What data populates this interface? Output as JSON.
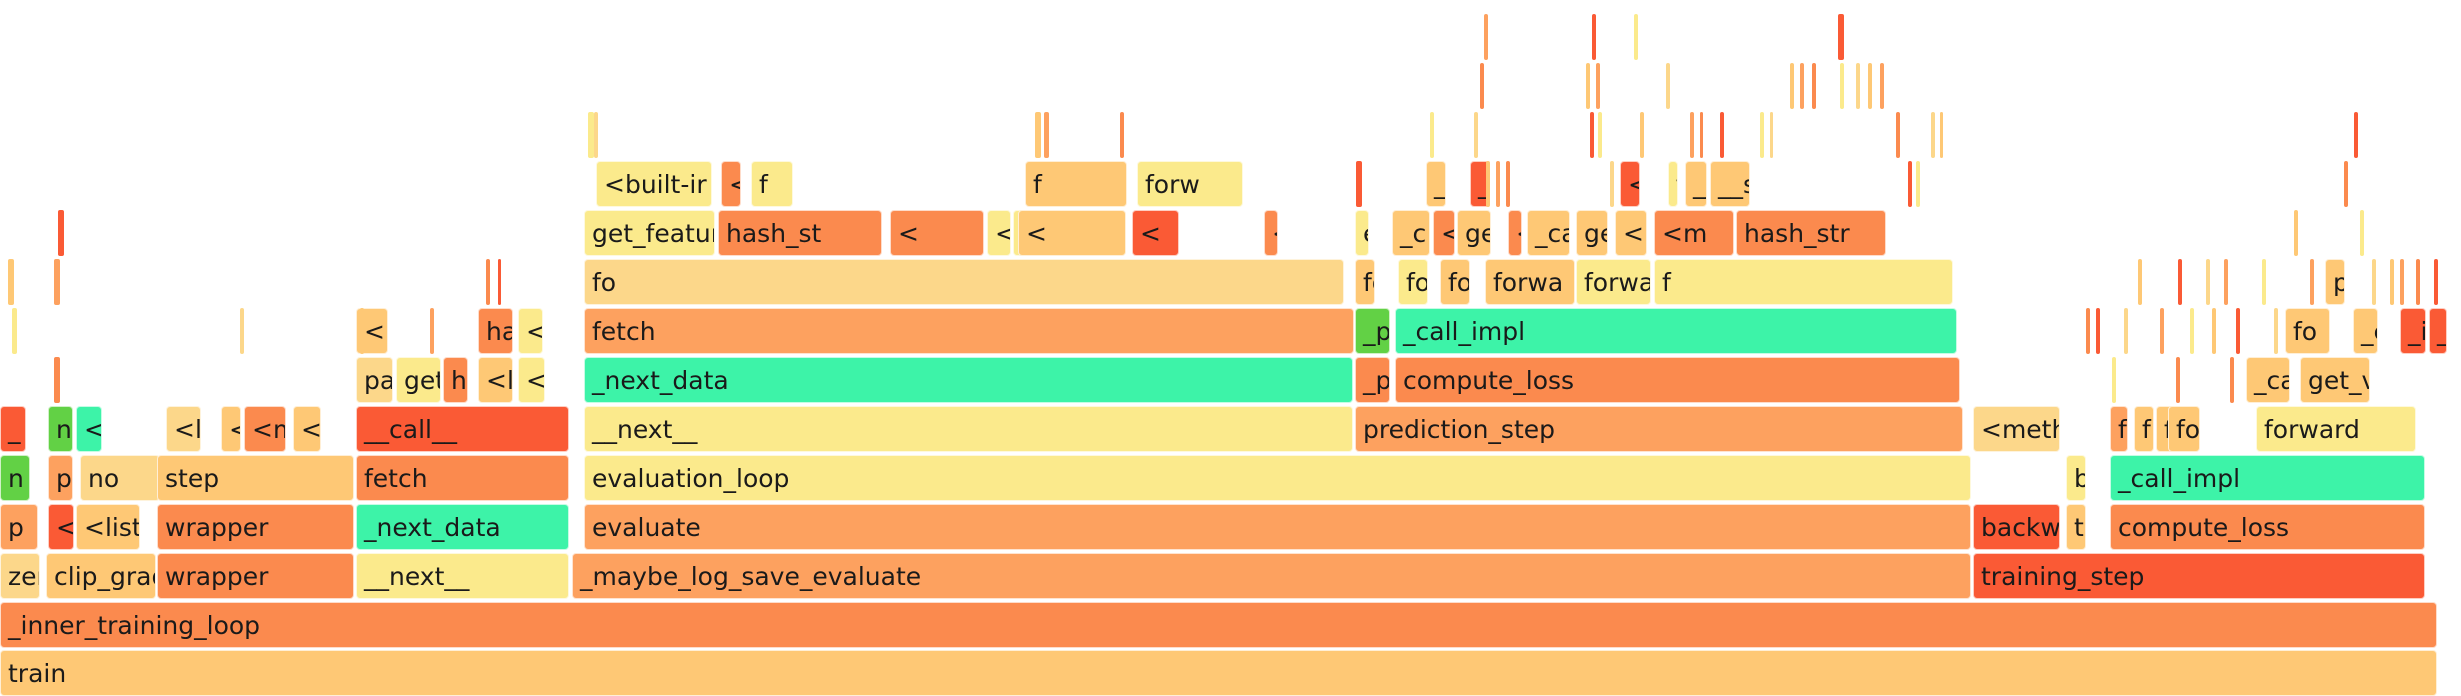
{
  "colors": {
    "c0": "#fec875",
    "c1": "#fda15f",
    "c2": "#fb8a4e",
    "c3": "#fa5a35",
    "c4": "#fbea8c",
    "c5": "#3df3a8",
    "c6": "#62d145",
    "c7": "#fcd78a"
  },
  "frames": [
    {
      "label": "train",
      "c": "c0"
    },
    {
      "label": "_inner_training_loop",
      "c": "c2"
    },
    {
      "label": "zer",
      "c": "c7"
    },
    {
      "label": "clip_grad",
      "c": "c0"
    },
    {
      "label": "wrapper",
      "c": "c2"
    },
    {
      "label": "__next__",
      "c": "c4"
    },
    {
      "label": "_maybe_log_save_evaluate",
      "c": "c1"
    },
    {
      "label": "training_step",
      "c": "c3"
    },
    {
      "label": "p",
      "c": "c1"
    },
    {
      "label": "<",
      "c": "c3"
    },
    {
      "label": "<list",
      "c": "c0"
    },
    {
      "label": "wrapper",
      "c": "c2"
    },
    {
      "label": "_next_data",
      "c": "c5"
    },
    {
      "label": "evaluate",
      "c": "c1"
    },
    {
      "label": "backwa",
      "c": "c3"
    },
    {
      "label": "tr",
      "c": "c0"
    },
    {
      "label": "compute_loss",
      "c": "c2"
    },
    {
      "label": "n",
      "c": "c6"
    },
    {
      "label": "p",
      "c": "c1"
    },
    {
      "label": "no",
      "c": "c7"
    },
    {
      "label": "step",
      "c": "c0"
    },
    {
      "label": "fetch",
      "c": "c2"
    },
    {
      "label": "evaluation_loop",
      "c": "c4"
    },
    {
      "label": "backwa",
      "c": "c4"
    },
    {
      "label": "_call_impl",
      "c": "c5"
    },
    {
      "label": "_",
      "c": "c3"
    },
    {
      "label": "n",
      "c": "c6"
    },
    {
      "label": "<",
      "c": "c5"
    },
    {
      "label": "<l",
      "c": "c7"
    },
    {
      "label": "<",
      "c": "c0"
    },
    {
      "label": "<m",
      "c": "c2"
    },
    {
      "label": "<r",
      "c": "c0"
    },
    {
      "label": "__call__",
      "c": "c3"
    },
    {
      "label": "__next__",
      "c": "c4"
    },
    {
      "label": "prediction_step",
      "c": "c1"
    },
    {
      "label": "<metho",
      "c": "c7"
    },
    {
      "label": "f",
      "c": "c1"
    },
    {
      "label": "f",
      "c": "c0"
    },
    {
      "label": "fo",
      "c": "c0"
    },
    {
      "label": "for",
      "c": "c0"
    },
    {
      "label": "forward",
      "c": "c4"
    },
    {
      "label": "pa",
      "c": "c7"
    },
    {
      "label": "get",
      "c": "c4"
    },
    {
      "label": "h",
      "c": "c2"
    },
    {
      "label": "<l",
      "c": "c0"
    },
    {
      "label": "<l",
      "c": "c4"
    },
    {
      "label": "_next_data",
      "c": "c5"
    },
    {
      "label": "_p",
      "c": "c2"
    },
    {
      "label": "compute_loss",
      "c": "c2"
    },
    {
      "label": "_call",
      "c": "c0"
    },
    {
      "label": "get_var",
      "c": "c0"
    },
    {
      "label": "<",
      "c": "c0"
    },
    {
      "label": "ha",
      "c": "c2"
    },
    {
      "label": "<",
      "c": "c4"
    },
    {
      "label": "fetch",
      "c": "c1"
    },
    {
      "label": "_p",
      "c": "c6"
    },
    {
      "label": "_call_impl",
      "c": "c5"
    },
    {
      "label": "fo",
      "c": "c0"
    },
    {
      "label": "_ca",
      "c": "c0"
    },
    {
      "label": "_ir",
      "c": "c3"
    },
    {
      "label": "__call__",
      "c": "c3"
    },
    {
      "label": "fo",
      "c": "c7"
    },
    {
      "label": "fo",
      "c": "c0"
    },
    {
      "label": "fo",
      "c": "c4"
    },
    {
      "label": "forwar",
      "c": "c0"
    },
    {
      "label": "forwa",
      "c": "c0"
    },
    {
      "label": "forward",
      "c": "c4"
    },
    {
      "label": "f",
      "c": "c4"
    },
    {
      "label": "pad_seque",
      "c": "c0"
    },
    {
      "label": "get_feature_di",
      "c": "c4"
    },
    {
      "label": "hash_st",
      "c": "c2"
    },
    {
      "label": "<",
      "c": "c2"
    },
    {
      "label": "<listcom",
      "c": "c4"
    },
    {
      "label": "<listcomp",
      "c": "c4"
    },
    {
      "label": "<",
      "c": "c0"
    },
    {
      "label": "<",
      "c": "c3"
    },
    {
      "label": "<",
      "c": "c2"
    },
    {
      "label": "e",
      "c": "c4"
    },
    {
      "label": "_c",
      "c": "c0"
    },
    {
      "label": "<b",
      "c": "c2"
    },
    {
      "label": "ge",
      "c": "c0"
    },
    {
      "label": "<",
      "c": "c2"
    },
    {
      "label": "_call_im",
      "c": "c0"
    },
    {
      "label": "get_varlen_poo",
      "c": "c0"
    },
    {
      "label": "<built-ir",
      "c": "c0"
    },
    {
      "label": "<m",
      "c": "c2"
    },
    {
      "label": "hash_str",
      "c": "c2"
    },
    {
      "label": "<built-ir",
      "c": "c4"
    },
    {
      "label": "<",
      "c": "c2"
    },
    {
      "label": "f",
      "c": "c4"
    },
    {
      "label": "f",
      "c": "c0"
    },
    {
      "label": "forw",
      "c": "c4"
    },
    {
      "label": "_call",
      "c": "c0"
    },
    {
      "label": "__init_",
      "c": "c3"
    },
    {
      "label": "<",
      "c": "c3"
    },
    {
      "label": "fo",
      "c": "c4"
    },
    {
      "label": "__ir",
      "c": "c0"
    },
    {
      "label": "__s",
      "c": "c0"
    }
  ]
}
